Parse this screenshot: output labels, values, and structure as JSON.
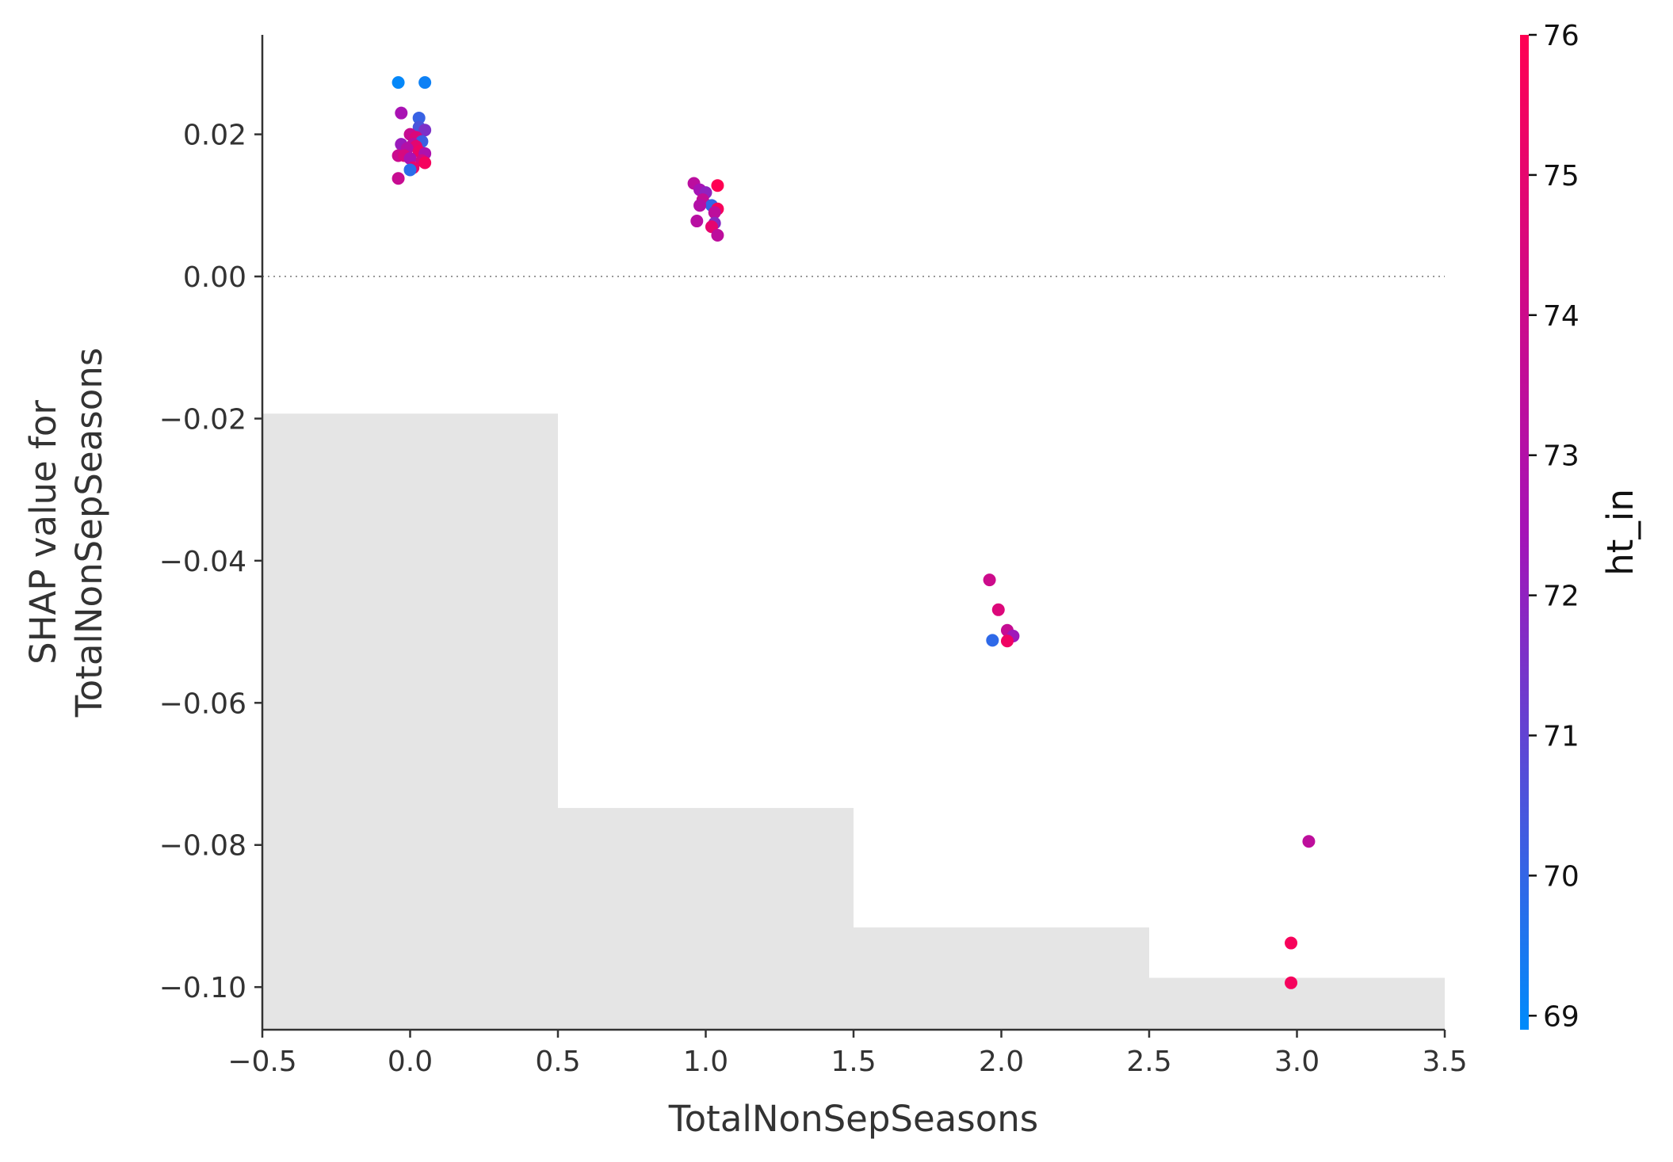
{
  "chart_data": {
    "type": "scatter",
    "xlabel": "TotalNonSepSeasons",
    "ylabel_lines": [
      "SHAP value for",
      "TotalNonSepSeasons"
    ],
    "xlim": [
      -0.5,
      3.5
    ],
    "ylim": [
      -0.106,
      0.034
    ],
    "xticks": [
      -0.5,
      0.0,
      0.5,
      1.0,
      1.5,
      2.0,
      2.5,
      3.0,
      3.5
    ],
    "xtick_labels": [
      "−0.5",
      "0.0",
      "0.5",
      "1.0",
      "1.5",
      "2.0",
      "2.5",
      "3.0",
      "3.5"
    ],
    "yticks": [
      0.02,
      0.0,
      -0.02,
      -0.04,
      -0.06,
      -0.08,
      -0.1
    ],
    "ytick_labels": [
      "0.02",
      "0.00",
      "−0.02",
      "−0.04",
      "−0.06",
      "−0.08",
      "−0.10"
    ],
    "zero_line": true,
    "grid": false,
    "histogram": {
      "color": "#e5e5e5",
      "bins": [
        {
          "x0": -0.5,
          "x1": 0.5,
          "top": -0.0193
        },
        {
          "x0": 0.5,
          "x1": 1.5,
          "top": -0.0748
        },
        {
          "x0": 1.5,
          "x1": 2.5,
          "top": -0.0916
        },
        {
          "x0": 2.5,
          "x1": 3.5,
          "top": -0.0987
        }
      ]
    },
    "colorbar": {
      "title": "ht_in",
      "min": 68.9,
      "max": 76.0,
      "ticks": [
        69,
        70,
        71,
        72,
        73,
        74,
        75,
        76
      ],
      "tick_labels": [
        "69",
        "70",
        "71",
        "72",
        "73",
        "74",
        "75",
        "76"
      ],
      "low_color": "#008bfb",
      "mid_color": "#a513b7",
      "high_color": "#ff0052"
    },
    "points": [
      {
        "x": -0.04,
        "y": 0.0273,
        "c": 69.0
      },
      {
        "x": 0.05,
        "y": 0.0273,
        "c": 69.2
      },
      {
        "x": -0.03,
        "y": 0.023,
        "c": 72.6
      },
      {
        "x": 0.03,
        "y": 0.0223,
        "c": 70.1
      },
      {
        "x": 0.03,
        "y": 0.021,
        "c": 70.5
      },
      {
        "x": 0.05,
        "y": 0.0206,
        "c": 71.6
      },
      {
        "x": 0.0,
        "y": 0.02,
        "c": 73.8
      },
      {
        "x": 0.02,
        "y": 0.0196,
        "c": 74.6
      },
      {
        "x": 0.04,
        "y": 0.019,
        "c": 70.2
      },
      {
        "x": -0.03,
        "y": 0.0186,
        "c": 72.2
      },
      {
        "x": 0.01,
        "y": 0.0186,
        "c": 73.4
      },
      {
        "x": 0.02,
        "y": 0.0183,
        "c": 74.9
      },
      {
        "x": -0.01,
        "y": 0.018,
        "c": 73.0
      },
      {
        "x": 0.03,
        "y": 0.0176,
        "c": 75.3
      },
      {
        "x": 0.05,
        "y": 0.0173,
        "c": 72.8
      },
      {
        "x": -0.04,
        "y": 0.017,
        "c": 73.9
      },
      {
        "x": -0.02,
        "y": 0.017,
        "c": 74.4
      },
      {
        "x": 0.0,
        "y": 0.0166,
        "c": 72.6
      },
      {
        "x": 0.04,
        "y": 0.0163,
        "c": 74.2
      },
      {
        "x": 0.05,
        "y": 0.016,
        "c": 75.6
      },
      {
        "x": 0.01,
        "y": 0.0153,
        "c": 75.1
      },
      {
        "x": 0.0,
        "y": 0.015,
        "c": 69.8
      },
      {
        "x": -0.04,
        "y": 0.0138,
        "c": 73.8
      },
      {
        "x": 0.96,
        "y": 0.0131,
        "c": 73.3
      },
      {
        "x": 1.04,
        "y": 0.0128,
        "c": 76.0
      },
      {
        "x": 0.98,
        "y": 0.0122,
        "c": 72.5
      },
      {
        "x": 1.0,
        "y": 0.0118,
        "c": 72.0
      },
      {
        "x": 0.99,
        "y": 0.0108,
        "c": 73.6
      },
      {
        "x": 1.02,
        "y": 0.01,
        "c": 70.0
      },
      {
        "x": 0.98,
        "y": 0.01,
        "c": 73.0
      },
      {
        "x": 1.04,
        "y": 0.0095,
        "c": 75.7
      },
      {
        "x": 1.03,
        "y": 0.009,
        "c": 73.4
      },
      {
        "x": 0.97,
        "y": 0.0078,
        "c": 73.2
      },
      {
        "x": 1.03,
        "y": 0.0075,
        "c": 71.8
      },
      {
        "x": 1.02,
        "y": 0.007,
        "c": 75.0
      },
      {
        "x": 1.04,
        "y": 0.0058,
        "c": 73.4
      },
      {
        "x": 1.96,
        "y": -0.0427,
        "c": 74.0
      },
      {
        "x": 1.99,
        "y": -0.0469,
        "c": 74.6
      },
      {
        "x": 2.02,
        "y": -0.0498,
        "c": 73.7
      },
      {
        "x": 2.04,
        "y": -0.0506,
        "c": 72.3
      },
      {
        "x": 1.97,
        "y": -0.0512,
        "c": 69.9
      },
      {
        "x": 2.02,
        "y": -0.0513,
        "c": 75.4
      },
      {
        "x": 3.04,
        "y": -0.0795,
        "c": 73.4
      },
      {
        "x": 2.98,
        "y": -0.0938,
        "c": 75.7
      },
      {
        "x": 2.98,
        "y": -0.0994,
        "c": 75.6
      }
    ]
  }
}
